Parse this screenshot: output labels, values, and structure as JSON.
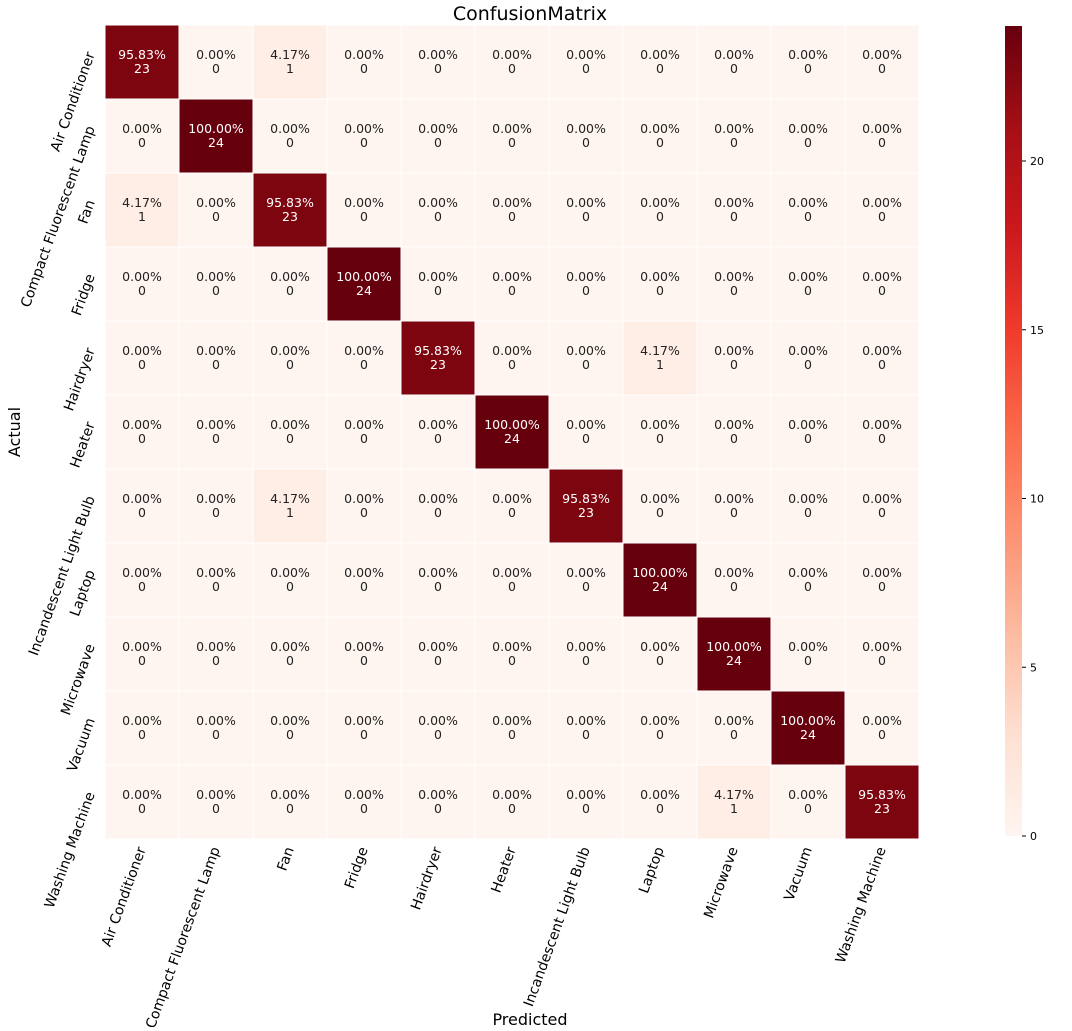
{
  "chart_data": {
    "type": "heatmap",
    "title": "ConfusionMatrix",
    "xlabel": "Predicted",
    "ylabel": "Actual",
    "x_categories": [
      "Air Conditioner",
      "Compact Fluorescent Lamp",
      "Fan",
      "Fridge",
      "Hairdryer",
      "Heater",
      "Incandescent Light Bulb",
      "Laptop",
      "Microwave",
      "Vacuum",
      "Washing Machine"
    ],
    "y_categories": [
      "Air Conditioner",
      "Compact Fluorescent Lamp",
      "Fan",
      "Fridge",
      "Hairdryer",
      "Heater",
      "Incandescent Light Bulb",
      "Laptop",
      "Microwave",
      "Vacuum",
      "Washing Machine"
    ],
    "counts": [
      [
        23,
        0,
        1,
        0,
        0,
        0,
        0,
        0,
        0,
        0,
        0
      ],
      [
        0,
        24,
        0,
        0,
        0,
        0,
        0,
        0,
        0,
        0,
        0
      ],
      [
        1,
        0,
        23,
        0,
        0,
        0,
        0,
        0,
        0,
        0,
        0
      ],
      [
        0,
        0,
        0,
        24,
        0,
        0,
        0,
        0,
        0,
        0,
        0
      ],
      [
        0,
        0,
        0,
        0,
        23,
        0,
        0,
        1,
        0,
        0,
        0
      ],
      [
        0,
        0,
        0,
        0,
        0,
        24,
        0,
        0,
        0,
        0,
        0
      ],
      [
        0,
        0,
        1,
        0,
        0,
        0,
        23,
        0,
        0,
        0,
        0
      ],
      [
        0,
        0,
        0,
        0,
        0,
        0,
        0,
        24,
        0,
        0,
        0
      ],
      [
        0,
        0,
        0,
        0,
        0,
        0,
        0,
        0,
        24,
        0,
        0
      ],
      [
        0,
        0,
        0,
        0,
        0,
        0,
        0,
        0,
        0,
        24,
        0
      ],
      [
        0,
        0,
        0,
        0,
        0,
        0,
        0,
        0,
        1,
        0,
        23
      ]
    ],
    "percent_labels": [
      [
        "95.83%",
        "0.00%",
        "4.17%",
        "0.00%",
        "0.00%",
        "0.00%",
        "0.00%",
        "0.00%",
        "0.00%",
        "0.00%",
        "0.00%"
      ],
      [
        "0.00%",
        "100.00%",
        "0.00%",
        "0.00%",
        "0.00%",
        "0.00%",
        "0.00%",
        "0.00%",
        "0.00%",
        "0.00%",
        "0.00%"
      ],
      [
        "4.17%",
        "0.00%",
        "95.83%",
        "0.00%",
        "0.00%",
        "0.00%",
        "0.00%",
        "0.00%",
        "0.00%",
        "0.00%",
        "0.00%"
      ],
      [
        "0.00%",
        "0.00%",
        "0.00%",
        "100.00%",
        "0.00%",
        "0.00%",
        "0.00%",
        "0.00%",
        "0.00%",
        "0.00%",
        "0.00%"
      ],
      [
        "0.00%",
        "0.00%",
        "0.00%",
        "0.00%",
        "95.83%",
        "0.00%",
        "0.00%",
        "4.17%",
        "0.00%",
        "0.00%",
        "0.00%"
      ],
      [
        "0.00%",
        "0.00%",
        "0.00%",
        "0.00%",
        "0.00%",
        "100.00%",
        "0.00%",
        "0.00%",
        "0.00%",
        "0.00%",
        "0.00%"
      ],
      [
        "0.00%",
        "0.00%",
        "4.17%",
        "0.00%",
        "0.00%",
        "0.00%",
        "95.83%",
        "0.00%",
        "0.00%",
        "0.00%",
        "0.00%"
      ],
      [
        "0.00%",
        "0.00%",
        "0.00%",
        "0.00%",
        "0.00%",
        "0.00%",
        "0.00%",
        "100.00%",
        "0.00%",
        "0.00%",
        "0.00%"
      ],
      [
        "0.00%",
        "0.00%",
        "0.00%",
        "0.00%",
        "0.00%",
        "0.00%",
        "0.00%",
        "0.00%",
        "100.00%",
        "0.00%",
        "0.00%"
      ],
      [
        "0.00%",
        "0.00%",
        "0.00%",
        "0.00%",
        "0.00%",
        "0.00%",
        "0.00%",
        "0.00%",
        "0.00%",
        "100.00%",
        "0.00%"
      ],
      [
        "0.00%",
        "0.00%",
        "0.00%",
        "0.00%",
        "0.00%",
        "0.00%",
        "0.00%",
        "0.00%",
        "4.17%",
        "0.00%",
        "95.83%"
      ]
    ],
    "colorbar": {
      "min": 0,
      "max": 24,
      "ticks": [
        0,
        5,
        10,
        15,
        20
      ],
      "colormap": "Reds",
      "colors": [
        "#fff5f0",
        "#fee0d2",
        "#fcbba1",
        "#fc9272",
        "#fb6a4a",
        "#ef3b2c",
        "#cb181d",
        "#a50f15",
        "#67000d"
      ]
    },
    "grid": false,
    "legend": "colorbar-right"
  }
}
